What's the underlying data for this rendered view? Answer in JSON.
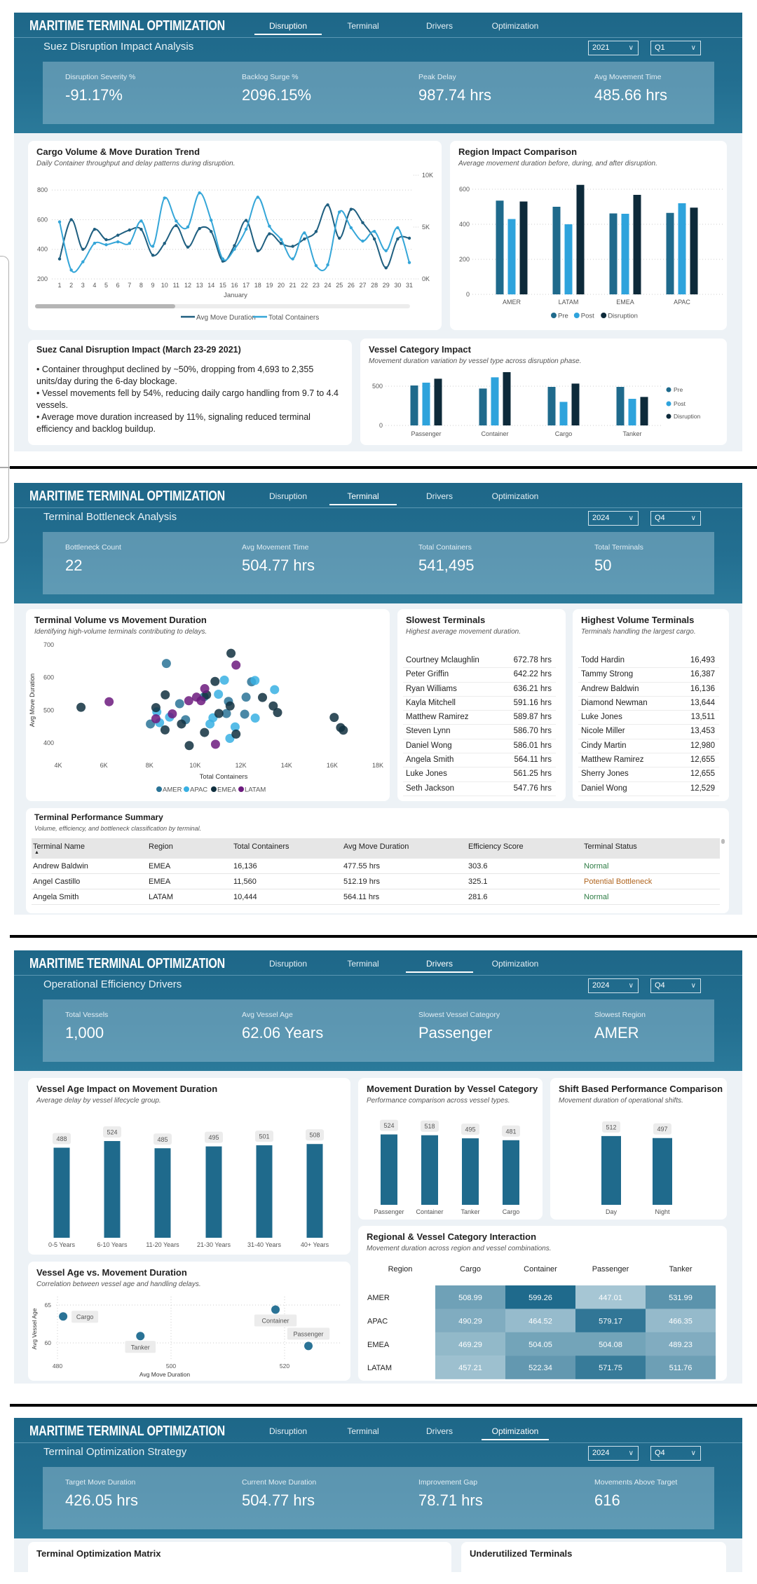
{
  "app_title": "MARITIME TERMINAL OPTIMIZATION",
  "nav_tabs": [
    "Disruption",
    "Terminal",
    "Drivers",
    "Optimization"
  ],
  "colors": {
    "pre": "#1f6a8c",
    "post": "#2ea3dc",
    "disruption": "#0d2a3a",
    "amer": "#2a7396",
    "apac": "#38b0e3",
    "emea": "#11303f",
    "latam": "#6c1a7e",
    "bar": "#1f6a8c",
    "status_normal": "#2e7d45",
    "status_bottleneck": "#b0651f",
    "heat_low": "#a6c6d4",
    "heat_high": "#1f6a8c"
  },
  "pages": [
    {
      "active_tab": "Disruption",
      "title": "Suez Disruption Impact Analysis",
      "year": "2021",
      "quarter": "Q1",
      "kpis": [
        {
          "label": "Disruption Severity %",
          "value": "-91.17%"
        },
        {
          "label": "Backlog Surge %",
          "value": "2096.15%"
        },
        {
          "label": "Peak Delay",
          "value": "987.74 hrs"
        },
        {
          "label": "Avg Movement Time",
          "value": "485.66 hrs"
        }
      ],
      "suez": {
        "title": "Suez Canal Disruption Impact (March 23-29 2021)",
        "bullets": [
          "•  Container throughput declined by ~50%, dropping from 4,693 to 2,355 units/day during the 6-day blockage.",
          "•  Vessel movements fell by 54%, reducing daily cargo handling from 9.7 to 4.4 vessels.",
          "•  Average move duration increased by 11%, signaling reduced terminal efficiency and backlog buildup."
        ]
      }
    },
    {
      "active_tab": "Terminal",
      "title": "Terminal Bottleneck Analysis",
      "year": "2024",
      "quarter": "Q4",
      "kpis": [
        {
          "label": "Bottleneck Count",
          "value": "22"
        },
        {
          "label": "Avg Movement Time",
          "value": "504.77 hrs"
        },
        {
          "label": "Total Containers",
          "value": "541,495"
        },
        {
          "label": "Total Terminals",
          "value": "50"
        }
      ],
      "slowest": {
        "title": "Slowest Terminals",
        "subtitle": "Highest average movement duration.",
        "rows": [
          {
            "name": "Courtney Mclaughlin",
            "value": "672.78 hrs"
          },
          {
            "name": "Peter Griffin",
            "value": "642.22 hrs"
          },
          {
            "name": "Ryan Williams",
            "value": "636.21 hrs"
          },
          {
            "name": "Kayla Mitchell",
            "value": "591.16 hrs"
          },
          {
            "name": "Matthew Ramirez",
            "value": "589.87 hrs"
          },
          {
            "name": "Steven Lynn",
            "value": "586.70 hrs"
          },
          {
            "name": "Daniel Wong",
            "value": "586.01 hrs"
          },
          {
            "name": "Angela Smith",
            "value": "564.11 hrs"
          },
          {
            "name": "Luke Jones",
            "value": "561.25 hrs"
          },
          {
            "name": "Seth Jackson",
            "value": "547.76 hrs"
          }
        ]
      },
      "highest": {
        "title": "Highest Volume Terminals",
        "subtitle": "Terminals handling the largest cargo.",
        "rows": [
          {
            "name": "Todd Hardin",
            "value": "16,493"
          },
          {
            "name": "Tammy Strong",
            "value": "16,387"
          },
          {
            "name": "Andrew Baldwin",
            "value": "16,136"
          },
          {
            "name": "Diamond Newman",
            "value": "13,644"
          },
          {
            "name": "Luke Jones",
            "value": "13,511"
          },
          {
            "name": "Nicole Miller",
            "value": "13,453"
          },
          {
            "name": "Cindy Martin",
            "value": "12,980"
          },
          {
            "name": "Matthew Ramirez",
            "value": "12,655"
          },
          {
            "name": "Sherry Jones",
            "value": "12,655"
          },
          {
            "name": "Daniel Wong",
            "value": "12,529"
          }
        ]
      },
      "summary": {
        "title": "Terminal Performance Summary",
        "subtitle": "Volume, efficiency, and bottleneck classification by terminal.",
        "sort_indicator": "▲",
        "columns": [
          "Terminal Name",
          "Region",
          "Total Containers",
          "Avg Move Duration",
          "Efficiency Score",
          "Terminal Status"
        ],
        "rows": [
          [
            "Andrew Baldwin",
            "EMEA",
            "16,136",
            "477.55 hrs",
            "303.6",
            "Normal"
          ],
          [
            "Angel Castillo",
            "EMEA",
            "11,560",
            "512.19 hrs",
            "325.1",
            "Potential Bottleneck"
          ],
          [
            "Angela Smith",
            "LATAM",
            "10,444",
            "564.11 hrs",
            "281.6",
            "Normal"
          ]
        ]
      }
    },
    {
      "active_tab": "Drivers",
      "title": "Operational Efficiency Drivers",
      "year": "2024",
      "quarter": "Q4",
      "kpis": [
        {
          "label": "Total Vessels",
          "value": "1,000"
        },
        {
          "label": "Avg Vessel Age",
          "value": "62.06 Years"
        },
        {
          "label": "Slowest Vessel Category",
          "value": "Passenger"
        },
        {
          "label": "Slowest Region",
          "value": "AMER"
        }
      ]
    },
    {
      "active_tab": "Optimization",
      "title": "Terminal Optimization Strategy",
      "year": "2024",
      "quarter": "Q4",
      "kpis": [
        {
          "label": "Target Move Duration",
          "value": "426.05 hrs"
        },
        {
          "label": "Current Move Duration",
          "value": "504.77 hrs"
        },
        {
          "label": "Improvement Gap",
          "value": "78.71 hrs"
        },
        {
          "label": "Movements Above Target",
          "value": "616"
        }
      ],
      "cards": [
        {
          "title": "Terminal Optimization Matrix"
        },
        {
          "title": "Underutilized Terminals"
        }
      ]
    }
  ],
  "chart_data": [
    {
      "type": "line",
      "title": "Cargo Volume & Move Duration Trend",
      "subtitle": "Daily Container throughput and delay patterns during disruption.",
      "xlabel": "January",
      "x": [
        1,
        2,
        3,
        4,
        5,
        6,
        7,
        8,
        9,
        10,
        11,
        12,
        13,
        14,
        15,
        16,
        17,
        18,
        19,
        20,
        21,
        22,
        23,
        24,
        25,
        26,
        27,
        28,
        29,
        30,
        31
      ],
      "ylim_left": [
        200,
        900
      ],
      "yticks_left": [
        200,
        400,
        600,
        800
      ],
      "ylim_right": [
        0,
        10000
      ],
      "yticks_right": [
        0,
        5000,
        10000
      ],
      "ytick_labels_right": [
        "0K",
        "5K",
        "10K"
      ],
      "legend": "bottom",
      "grid": true,
      "series": [
        {
          "name": "Avg Move Duration",
          "axis": "left",
          "color": "#1f5f80",
          "values": [
            335,
            600,
            400,
            535,
            465,
            495,
            530,
            535,
            360,
            440,
            560,
            415,
            540,
            520,
            320,
            425,
            595,
            390,
            505,
            440,
            420,
            470,
            520,
            700,
            475,
            670,
            580,
            470,
            275,
            470,
            475
          ]
        },
        {
          "name": "Total Containers",
          "axis": "right",
          "color": "#35a6d8",
          "values": [
            5500,
            860,
            1650,
            3440,
            3300,
            3580,
            3440,
            5590,
            3150,
            7800,
            5590,
            5010,
            8300,
            5660,
            1930,
            2870,
            4800,
            7880,
            5090,
            3800,
            1930,
            4440,
            1290,
            1360,
            6450,
            4940,
            3650,
            4580,
            2720,
            4940,
            1580
          ]
        }
      ]
    },
    {
      "type": "bar",
      "title": "Region Impact Comparison",
      "subtitle": "Average movement duration before, during, and after disruption.",
      "categories": [
        "AMER",
        "LATAM",
        "EMEA",
        "APAC"
      ],
      "ylim": [
        0,
        650
      ],
      "yticks": [
        0,
        200,
        400,
        600
      ],
      "legend": "bottom",
      "grid": true,
      "series": [
        {
          "name": "Pre",
          "values": [
            535,
            500,
            462,
            465
          ]
        },
        {
          "name": "Post",
          "values": [
            430,
            400,
            460,
            520
          ]
        },
        {
          "name": "Disruption",
          "values": [
            530,
            625,
            568,
            495
          ]
        }
      ]
    },
    {
      "type": "bar",
      "title": "Vessel Category Impact",
      "subtitle": "Movement duration variation by vessel type across disruption phase.",
      "categories": [
        "Passenger",
        "Container",
        "Cargo",
        "Tanker"
      ],
      "ylim": [
        0,
        700
      ],
      "yticks": [
        0,
        500
      ],
      "legend": "right",
      "grid": true,
      "series": [
        {
          "name": "Pre",
          "values": [
            509,
            470,
            491,
            491
          ]
        },
        {
          "name": "Post",
          "values": [
            545,
            613,
            300,
            339
          ]
        },
        {
          "name": "Disruption",
          "values": [
            595,
            679,
            533,
            363
          ]
        }
      ]
    },
    {
      "type": "scatter",
      "title": "Terminal Volume vs Movement Duration",
      "subtitle": "Identifying high-volume terminals contributing to delays.",
      "xlabel": "Total Containers",
      "ylabel": "Avg Move Duration",
      "xlim": [
        4000,
        18000
      ],
      "xticks": [
        4000,
        6000,
        8000,
        10000,
        12000,
        14000,
        16000,
        18000
      ],
      "xtick_labels": [
        "4K",
        "6K",
        "8K",
        "10K",
        "12K",
        "14K",
        "16K",
        "18K"
      ],
      "ylim": [
        370,
        700
      ],
      "yticks": [
        400,
        500,
        600,
        700
      ],
      "legend": "bottom",
      "grid": false,
      "series": [
        {
          "name": "AMER",
          "points": [
            [
              8740,
              643
            ],
            [
              9320,
              520
            ],
            [
              8040,
              458
            ],
            [
              9580,
              471
            ],
            [
              11370,
              490
            ],
            [
              11460,
              527
            ],
            [
              12230,
              540
            ],
            [
              12170,
              488
            ],
            [
              12470,
              587
            ],
            [
              10390,
              541
            ]
          ]
        },
        {
          "name": "APAC",
          "points": [
            [
              8320,
              495
            ],
            [
              8440,
              462
            ],
            [
              8880,
              479
            ],
            [
              11280,
              592
            ],
            [
              11020,
              549
            ],
            [
              10780,
              477
            ],
            [
              10650,
              458
            ],
            [
              11750,
              449
            ],
            [
              11520,
              414
            ],
            [
              12620,
              591
            ],
            [
              12630,
              476
            ],
            [
              13480,
              563
            ]
          ]
        },
        {
          "name": "EMEA",
          "points": [
            [
              5000,
              509
            ],
            [
              8280,
              508
            ],
            [
              8690,
              547
            ],
            [
              8680,
              440
            ],
            [
              9400,
              458
            ],
            [
              9740,
              392
            ],
            [
              10870,
              588
            ],
            [
              10500,
              547
            ],
            [
              11040,
              490
            ],
            [
              10410,
              432
            ],
            [
              11570,
              674
            ],
            [
              11530,
              513
            ],
            [
              11790,
              427
            ],
            [
              12950,
              539
            ],
            [
              13420,
              513
            ],
            [
              13610,
              493
            ],
            [
              16090,
              478
            ],
            [
              16370,
              447
            ],
            [
              16490,
              439
            ]
          ]
        },
        {
          "name": "LATAM",
          "points": [
            [
              6230,
              526
            ],
            [
              8280,
              474
            ],
            [
              9000,
              489
            ],
            [
              9720,
              529
            ],
            [
              10060,
              540
            ],
            [
              10260,
              529
            ],
            [
              10420,
              566
            ],
            [
              10890,
              396
            ],
            [
              11790,
              638
            ]
          ]
        }
      ]
    },
    {
      "type": "bar",
      "title": "Vessel Age Impact on Movement Duration",
      "subtitle": "Average delay by vessel lifecycle group.",
      "categories": [
        "0-5 Years",
        "6-10 Years",
        "11-20 Years",
        "21-30 Years",
        "31-40 Years",
        "40+ Years"
      ],
      "values": [
        488,
        524,
        485,
        495,
        501,
        508
      ],
      "data_labels": [
        "488",
        "524",
        "485",
        "495",
        "501",
        "508"
      ],
      "ylim": [
        0,
        600
      ]
    },
    {
      "type": "bar",
      "title": "Movement Duration by Vessel Category",
      "subtitle": "Performance comparison across vessel types.",
      "categories": [
        "Passenger",
        "Container",
        "Tanker",
        "Cargo"
      ],
      "values": [
        524,
        518,
        495,
        481
      ],
      "data_labels": [
        "524",
        "518",
        "495",
        "481"
      ],
      "ylim": [
        0,
        600
      ]
    },
    {
      "type": "bar",
      "title": "Shift Based Performance Comparison",
      "subtitle": "Movement duration of operational shifts.",
      "categories": [
        "Day",
        "Night"
      ],
      "values": [
        512,
        497
      ],
      "data_labels": [
        "512",
        "497"
      ],
      "ylim": [
        0,
        600
      ]
    },
    {
      "type": "heatmap",
      "title": "Regional & Vessel Category Interaction",
      "subtitle": "Movement duration across region and vessel combinations.",
      "row_header": "Region",
      "rows": [
        "AMER",
        "APAC",
        "EMEA",
        "LATAM"
      ],
      "columns": [
        "Cargo",
        "Container",
        "Passenger",
        "Tanker"
      ],
      "values": [
        [
          508.99,
          599.26,
          447.01,
          531.99
        ],
        [
          490.29,
          464.52,
          579.17,
          466.35
        ],
        [
          469.29,
          504.05,
          504.08,
          489.23
        ],
        [
          457.21,
          522.34,
          571.75,
          511.76
        ]
      ],
      "labels": [
        [
          "508.99",
          "599.26",
          "447.01",
          "531.99"
        ],
        [
          "490.29",
          "464.52",
          "579.17",
          "466.35"
        ],
        [
          "469.29",
          "504.05",
          "504.08",
          "489.23"
        ],
        [
          "457.21",
          "522.34",
          "571.75",
          "511.76"
        ]
      ]
    },
    {
      "type": "scatter",
      "title": "Vessel Age vs. Movement Duration",
      "subtitle": "Correlation between vessel age and handling delays.",
      "xlabel": "Avg Move Duration",
      "ylabel": "Avg Vessel Age",
      "xticks": [
        480,
        500,
        520
      ],
      "yticks": [
        60,
        65
      ],
      "grid": true,
      "points": [
        {
          "label": "Cargo",
          "x": 481,
          "y": 63.5
        },
        {
          "label": "Tanker",
          "x": 494.6,
          "y": 60.9
        },
        {
          "label": "Container",
          "x": 518.4,
          "y": 64.4
        },
        {
          "label": "Passenger",
          "x": 524.2,
          "y": 59.6
        }
      ]
    }
  ]
}
